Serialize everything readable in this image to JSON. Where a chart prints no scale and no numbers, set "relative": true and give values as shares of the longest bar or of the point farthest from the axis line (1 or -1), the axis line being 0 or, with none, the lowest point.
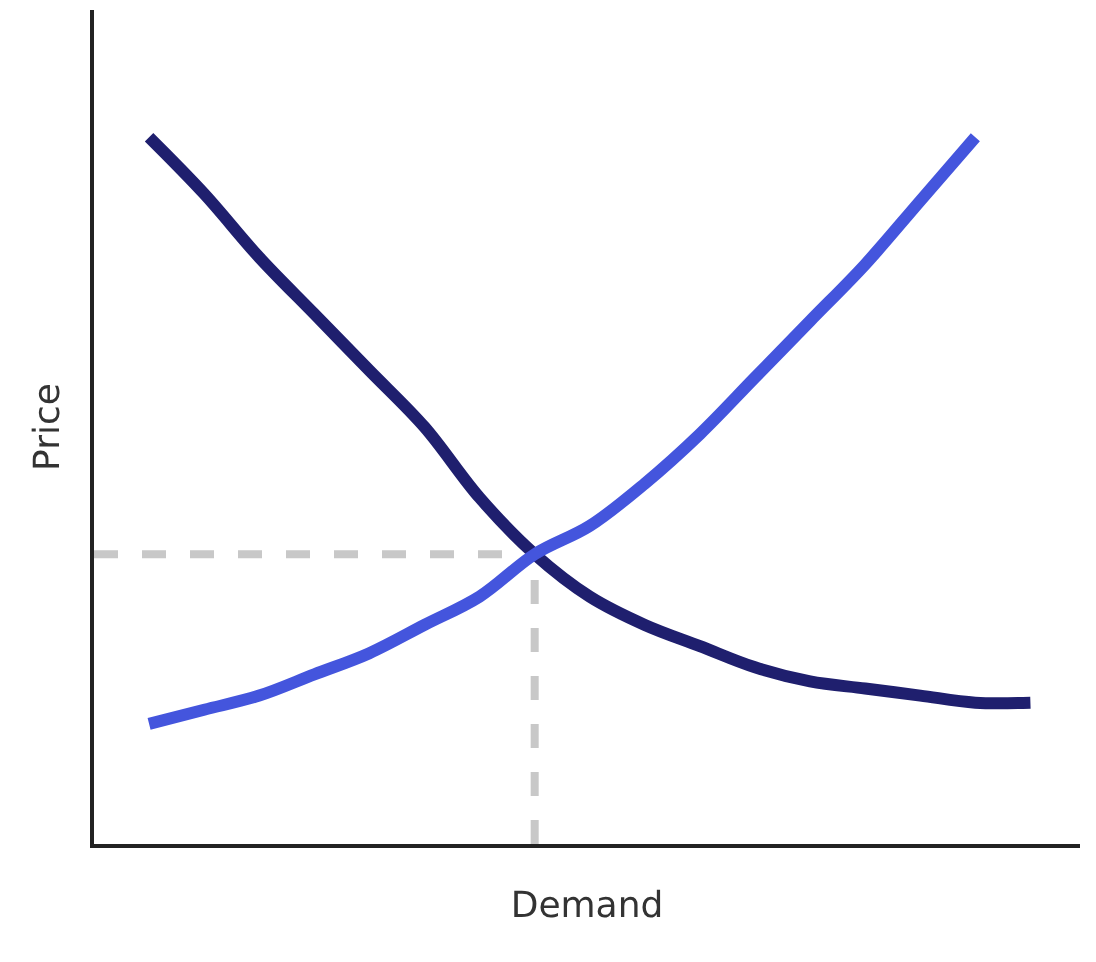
{
  "chart_data": {
    "type": "line",
    "relative": true,
    "xlabel": "Demand",
    "ylabel": "Price",
    "marker": "none",
    "ref_lines": [
      {
        "axis": "y",
        "value": 0.41,
        "color": "#c8c8c8",
        "line_style": "dashed"
      }
    ],
    "categories": [
      null,
      null,
      null,
      null,
      null,
      null,
      null,
      null,
      null,
      null,
      null,
      null,
      null,
      null,
      null,
      null,
      null,
      null
    ],
    "series": [
      {
        "color": "#1f1f6e",
        "values": [
          null,
          1.0,
          0.92,
          0.83,
          0.75,
          0.67,
          0.59,
          0.49,
          0.41,
          0.35,
          0.31,
          0.28,
          0.25,
          0.23,
          0.22,
          0.21,
          0.2,
          0.2
        ]
      },
      {
        "color": "#4455dd",
        "values": [
          null,
          0.17,
          0.19,
          0.21,
          0.24,
          0.27,
          0.31,
          0.35,
          0.41,
          0.45,
          0.51,
          0.58,
          0.66,
          0.74,
          0.82,
          0.91,
          1.0,
          null
        ]
      }
    ]
  }
}
